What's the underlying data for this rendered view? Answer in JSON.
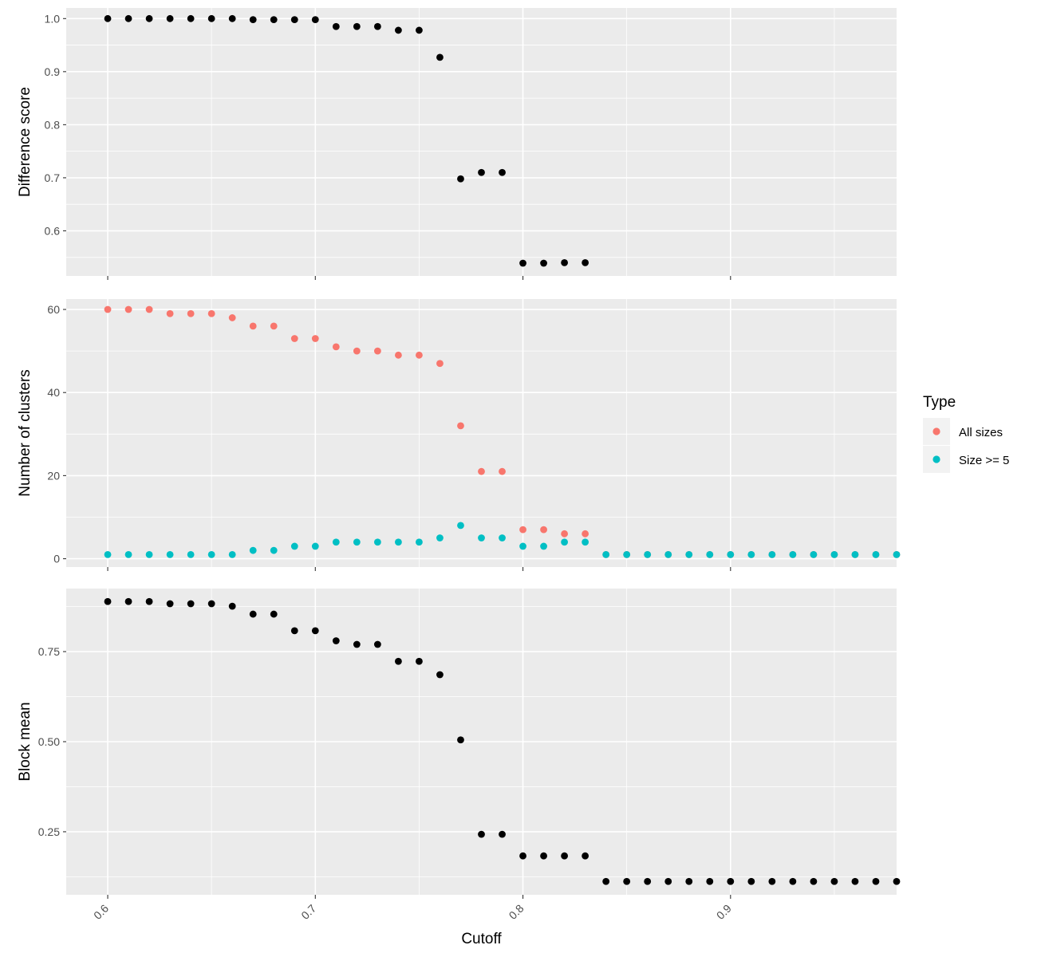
{
  "chart_data": [
    {
      "type": "scatter",
      "ylabel": "Difference score",
      "xlabel": "",
      "xlim": [
        0.58,
        0.98
      ],
      "ylim": [
        0.515,
        1.02
      ],
      "y_ticks": [
        0.6,
        0.7,
        0.8,
        0.9,
        1.0
      ],
      "y_tick_labels": [
        "0.6",
        "0.7",
        "0.8",
        "0.9",
        "1.0"
      ],
      "series": [
        {
          "color": "#000000",
          "x": [
            0.6,
            0.61,
            0.62,
            0.63,
            0.64,
            0.65,
            0.66,
            0.67,
            0.68,
            0.69,
            0.7,
            0.71,
            0.72,
            0.73,
            0.74,
            0.75,
            0.76,
            0.77,
            0.78,
            0.79,
            0.8,
            0.81,
            0.82,
            0.83
          ],
          "y": [
            1.0,
            1.0,
            1.0,
            1.0,
            1.0,
            1.0,
            1.0,
            0.998,
            0.998,
            0.998,
            0.998,
            0.985,
            0.985,
            0.985,
            0.978,
            0.978,
            0.927,
            0.698,
            0.71,
            0.71,
            0.539,
            0.539,
            0.54,
            0.54
          ]
        }
      ]
    },
    {
      "type": "scatter",
      "ylabel": "Number of clusters",
      "xlabel": "",
      "xlim": [
        0.58,
        0.98
      ],
      "ylim": [
        -2,
        62.5
      ],
      "y_ticks": [
        0,
        20,
        40,
        60
      ],
      "y_tick_labels": [
        "0",
        "20",
        "40",
        "60"
      ],
      "series": [
        {
          "name": "All sizes",
          "color": "#F8766D",
          "x": [
            0.6,
            0.61,
            0.62,
            0.63,
            0.64,
            0.65,
            0.66,
            0.67,
            0.68,
            0.69,
            0.7,
            0.71,
            0.72,
            0.73,
            0.74,
            0.75,
            0.76,
            0.77,
            0.78,
            0.79,
            0.8,
            0.81,
            0.82,
            0.83,
            0.84,
            0.85,
            0.86,
            0.87,
            0.88,
            0.89,
            0.9,
            0.91,
            0.92,
            0.93,
            0.94,
            0.95,
            0.96,
            0.97,
            0.98
          ],
          "y": [
            60,
            60,
            60,
            59,
            59,
            59,
            58,
            56,
            56,
            53,
            53,
            51,
            50,
            50,
            49,
            49,
            47,
            32,
            21,
            21,
            7,
            7,
            6,
            6,
            1,
            1,
            1,
            1,
            1,
            1,
            1,
            1,
            1,
            1,
            1,
            1,
            1,
            1,
            1
          ]
        },
        {
          "name": "Size >= 5",
          "color": "#00BFC4",
          "x": [
            0.6,
            0.61,
            0.62,
            0.63,
            0.64,
            0.65,
            0.66,
            0.67,
            0.68,
            0.69,
            0.7,
            0.71,
            0.72,
            0.73,
            0.74,
            0.75,
            0.76,
            0.77,
            0.78,
            0.79,
            0.8,
            0.81,
            0.82,
            0.83,
            0.84,
            0.85,
            0.86,
            0.87,
            0.88,
            0.89,
            0.9,
            0.91,
            0.92,
            0.93,
            0.94,
            0.95,
            0.96,
            0.97,
            0.98
          ],
          "y": [
            1,
            1,
            1,
            1,
            1,
            1,
            1,
            2,
            2,
            3,
            3,
            4,
            4,
            4,
            4,
            4,
            5,
            8,
            5,
            5,
            3,
            3,
            4,
            4,
            1,
            1,
            1,
            1,
            1,
            1,
            1,
            1,
            1,
            1,
            1,
            1,
            1,
            1,
            1
          ]
        }
      ]
    },
    {
      "type": "scatter",
      "ylabel": "Block mean",
      "xlabel": "Cutoff",
      "xlim": [
        0.58,
        0.98
      ],
      "ylim": [
        0.075,
        0.925
      ],
      "y_ticks": [
        0.25,
        0.5,
        0.75
      ],
      "y_tick_labels": [
        "0.25",
        "0.50",
        "0.75"
      ],
      "x_ticks": [
        0.6,
        0.7,
        0.8,
        0.9
      ],
      "x_tick_labels": [
        "0.6",
        "0.7",
        "0.8",
        "0.9"
      ],
      "series": [
        {
          "color": "#000000",
          "x": [
            0.6,
            0.61,
            0.62,
            0.63,
            0.64,
            0.65,
            0.66,
            0.67,
            0.68,
            0.69,
            0.7,
            0.71,
            0.72,
            0.73,
            0.74,
            0.75,
            0.76,
            0.77,
            0.78,
            0.79,
            0.8,
            0.81,
            0.82,
            0.83,
            0.84,
            0.85,
            0.86,
            0.87,
            0.88,
            0.89,
            0.9,
            0.91,
            0.92,
            0.93,
            0.94,
            0.95,
            0.96,
            0.97,
            0.98
          ],
          "y": [
            0.889,
            0.889,
            0.889,
            0.883,
            0.883,
            0.883,
            0.876,
            0.854,
            0.854,
            0.808,
            0.808,
            0.78,
            0.77,
            0.77,
            0.723,
            0.723,
            0.686,
            0.505,
            0.243,
            0.243,
            0.183,
            0.183,
            0.183,
            0.183,
            0.112,
            0.112,
            0.112,
            0.112,
            0.112,
            0.112,
            0.112,
            0.112,
            0.112,
            0.112,
            0.112,
            0.112,
            0.112,
            0.112,
            0.112
          ]
        }
      ]
    }
  ],
  "legend": {
    "title": "Type",
    "position": "right",
    "items": [
      {
        "label": "All sizes",
        "color": "#F8766D"
      },
      {
        "label": "Size >= 5",
        "color": "#00BFC4"
      }
    ]
  }
}
